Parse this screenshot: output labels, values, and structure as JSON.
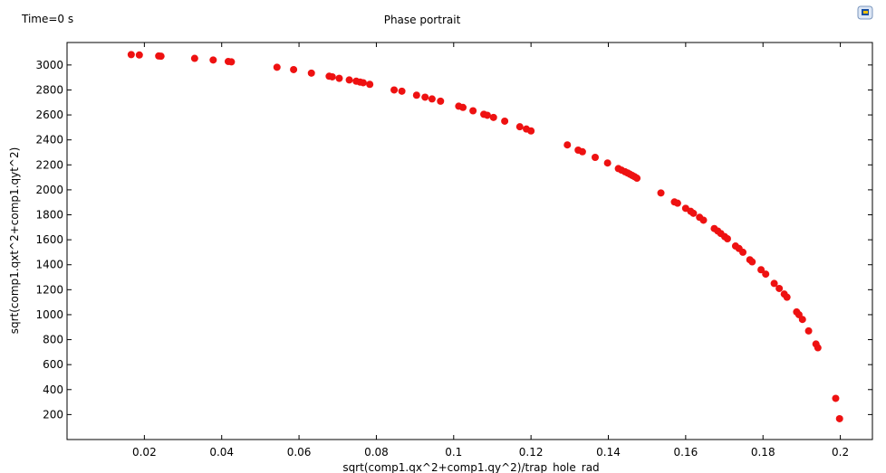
{
  "time_label": "Time=0 s",
  "chart_data": {
    "type": "scatter",
    "title": "Phase portrait",
    "xlabel": "sqrt(comp1.qx^2+comp1.qy^2)/trap_hole_rad",
    "ylabel": "sqrt(comp1.qxt^2+comp1.qyt^2)",
    "xlim": [
      0.0,
      0.2083
    ],
    "ylim": [
      0,
      3180
    ],
    "xticks": [
      0.02,
      0.04,
      0.06,
      0.08,
      0.1,
      0.12,
      0.14,
      0.16,
      0.18,
      0.2
    ],
    "xtick_labels": [
      "0.02",
      "0.04",
      "0.06",
      "0.08",
      "0.1",
      "0.12",
      "0.14",
      "0.16",
      "0.18",
      "0.2"
    ],
    "yticks": [
      200,
      400,
      600,
      800,
      1000,
      1200,
      1400,
      1600,
      1800,
      2000,
      2200,
      2400,
      2600,
      2800,
      3000
    ],
    "ytick_labels": [
      "200",
      "400",
      "600",
      "800",
      "1000",
      "1200",
      "1400",
      "1600",
      "1800",
      "2000",
      "2200",
      "2400",
      "2600",
      "2800",
      "3000"
    ],
    "grid": false,
    "marker_color": "#ee1111",
    "points": [
      [
        0.0166,
        3083
      ],
      [
        0.0187,
        3080
      ],
      [
        0.0237,
        3072
      ],
      [
        0.0243,
        3070
      ],
      [
        0.033,
        3053
      ],
      [
        0.0378,
        3040
      ],
      [
        0.0417,
        3028
      ],
      [
        0.0425,
        3025
      ],
      [
        0.0543,
        2982
      ],
      [
        0.0586,
        2963
      ],
      [
        0.0632,
        2935
      ],
      [
        0.0678,
        2910
      ],
      [
        0.0686,
        2905
      ],
      [
        0.0704,
        2893
      ],
      [
        0.073,
        2880
      ],
      [
        0.0748,
        2870
      ],
      [
        0.0758,
        2863
      ],
      [
        0.0766,
        2858
      ],
      [
        0.0783,
        2845
      ],
      [
        0.0846,
        2800
      ],
      [
        0.0866,
        2790
      ],
      [
        0.0904,
        2758
      ],
      [
        0.0926,
        2742
      ],
      [
        0.0944,
        2728
      ],
      [
        0.0966,
        2710
      ],
      [
        0.1013,
        2670
      ],
      [
        0.1024,
        2660
      ],
      [
        0.105,
        2633
      ],
      [
        0.1078,
        2605
      ],
      [
        0.1087,
        2597
      ],
      [
        0.1103,
        2580
      ],
      [
        0.1132,
        2550
      ],
      [
        0.1171,
        2505
      ],
      [
        0.1188,
        2487
      ],
      [
        0.12,
        2472
      ],
      [
        0.1294,
        2360
      ],
      [
        0.1322,
        2318
      ],
      [
        0.1333,
        2305
      ],
      [
        0.1366,
        2260
      ],
      [
        0.1398,
        2215
      ],
      [
        0.1426,
        2170
      ],
      [
        0.1434,
        2158
      ],
      [
        0.1443,
        2145
      ],
      [
        0.145,
        2135
      ],
      [
        0.1456,
        2125
      ],
      [
        0.1462,
        2115
      ],
      [
        0.1468,
        2105
      ],
      [
        0.1474,
        2093
      ],
      [
        0.1536,
        1975
      ],
      [
        0.1571,
        1903
      ],
      [
        0.1579,
        1893
      ],
      [
        0.16,
        1852
      ],
      [
        0.1613,
        1828
      ],
      [
        0.162,
        1812
      ],
      [
        0.1636,
        1780
      ],
      [
        0.1646,
        1757
      ],
      [
        0.1674,
        1690
      ],
      [
        0.1683,
        1670
      ],
      [
        0.1691,
        1650
      ],
      [
        0.1701,
        1625
      ],
      [
        0.1708,
        1608
      ],
      [
        0.1729,
        1550
      ],
      [
        0.1738,
        1530
      ],
      [
        0.1748,
        1500
      ],
      [
        0.1766,
        1440
      ],
      [
        0.1772,
        1423
      ],
      [
        0.1795,
        1360
      ],
      [
        0.1807,
        1325
      ],
      [
        0.1829,
        1250
      ],
      [
        0.1842,
        1210
      ],
      [
        0.1855,
        1165
      ],
      [
        0.1862,
        1140
      ],
      [
        0.1887,
        1022
      ],
      [
        0.1893,
        1000
      ],
      [
        0.1902,
        962
      ],
      [
        0.1918,
        870
      ],
      [
        0.1937,
        765
      ],
      [
        0.1942,
        735
      ],
      [
        0.1988,
        330
      ],
      [
        0.1998,
        167
      ]
    ]
  }
}
